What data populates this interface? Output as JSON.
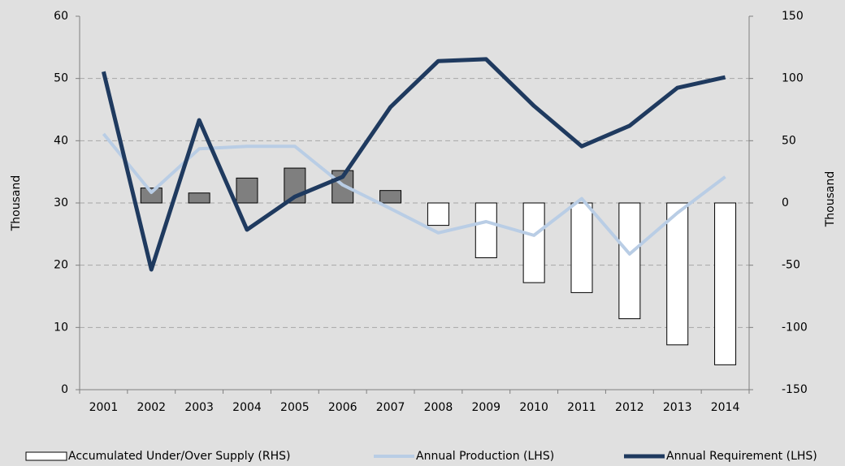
{
  "chart_data": {
    "type": "bar_line",
    "categories": [
      "2001",
      "2002",
      "2003",
      "2004",
      "2005",
      "2006",
      "2007",
      "2008",
      "2009",
      "2010",
      "2011",
      "2012",
      "2013",
      "2014"
    ],
    "ylabel": "Thousand",
    "y2label": "Thousand",
    "ylim": [
      0,
      60
    ],
    "yticks": [
      0,
      10,
      20,
      30,
      40,
      50,
      60
    ],
    "y2lim": [
      -150,
      150
    ],
    "y2ticks": [
      -150,
      -100,
      -50,
      0,
      50,
      100,
      150
    ],
    "grid": true,
    "legend": "bottom",
    "series": [
      {
        "name": "Accumulated Under/Over Supply (RHS)",
        "type": "bar",
        "axis": "y2",
        "color": "#7f7f7f",
        "negative_color": "#ffffff",
        "values": [
          null,
          12,
          8,
          20,
          28,
          26,
          10,
          -18,
          -44,
          -64,
          -72,
          -93,
          -114,
          -130
        ]
      },
      {
        "name": "Annual Production (LHS)",
        "type": "line",
        "color": "#b9cde5",
        "values": [
          41.1,
          31.7,
          38.7,
          39.1,
          39.1,
          32.9,
          29.1,
          25.2,
          27,
          24.8,
          30.7,
          21.8,
          28.4,
          34.2
        ]
      },
      {
        "name": "Annual Requirement (LHS)",
        "type": "line",
        "color": "#1f3a5f",
        "values": [
          51.1,
          19.3,
          43.3,
          25.7,
          31,
          34.2,
          45.4,
          52.8,
          53.1,
          45.6,
          39.1,
          42.4,
          48.5,
          50.2
        ]
      }
    ]
  }
}
